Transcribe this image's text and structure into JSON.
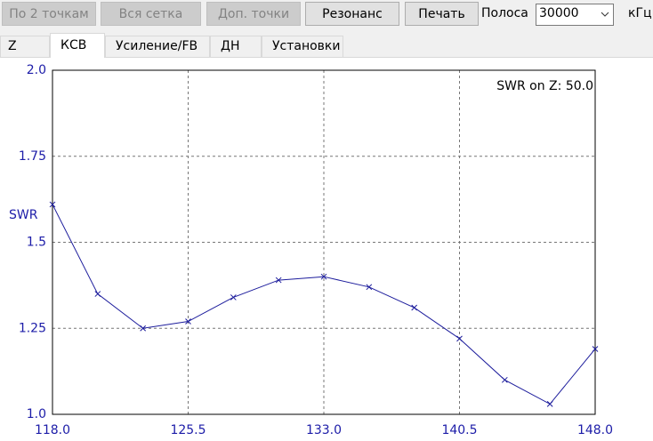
{
  "toolbar": {
    "buttons": [
      {
        "label": "По 2 точкам",
        "enabled": false
      },
      {
        "label": "Вся сетка",
        "enabled": false
      },
      {
        "label": "Доп. точки",
        "enabled": false
      },
      {
        "label": "Резонанс",
        "enabled": true
      },
      {
        "label": "Печать",
        "enabled": true
      }
    ],
    "band_label": "Полоса",
    "band_value": "30000",
    "band_unit": "кГц"
  },
  "tabs": {
    "items": [
      "Z",
      "КСВ",
      "Усиление/FB",
      "ДН",
      "Установки"
    ],
    "selected": 1
  },
  "chart_data": {
    "type": "line",
    "annotation": "SWR on Z: 50.0",
    "y_label": "SWR",
    "x": [
      118,
      120.5,
      123,
      125.5,
      128,
      130.5,
      133,
      135.5,
      138,
      140.5,
      143,
      145.5,
      148
    ],
    "values": [
      1.61,
      1.35,
      1.25,
      1.27,
      1.34,
      1.39,
      1.4,
      1.37,
      1.31,
      1.22,
      1.1,
      1.03,
      1.19
    ],
    "color": "#1c1c9c",
    "xlim": [
      118,
      148
    ],
    "xticks": [
      {
        "value": 118,
        "label": "118.0"
      },
      125.5,
      {
        "value": 133,
        "label": "133.0"
      },
      140.5,
      {
        "value": 148,
        "label": "148.0"
      }
    ],
    "ylim": [
      1,
      2
    ],
    "yticks": [
      {
        "value": 1,
        "label": "1.0"
      },
      1.25,
      1.5,
      1.75,
      {
        "value": 2,
        "label": "2.0"
      }
    ],
    "grid": true
  }
}
